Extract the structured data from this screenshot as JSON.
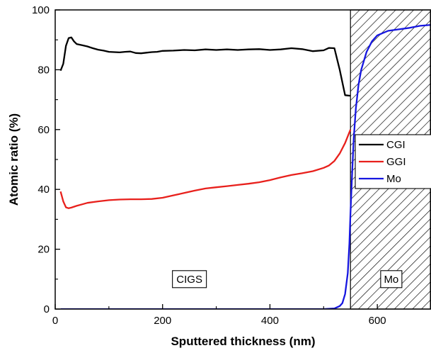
{
  "chart_data": {
    "type": "line",
    "title": "",
    "xlabel": "Sputtered thickness (nm)",
    "ylabel": "Atomic ratio (%)",
    "xlim": [
      0,
      700
    ],
    "ylim": [
      0,
      100
    ],
    "xticks": [
      0,
      200,
      400,
      600
    ],
    "yticks": [
      0,
      20,
      40,
      60,
      80,
      100
    ],
    "grid": false,
    "legend_position": "right",
    "colors": {
      "CGI": "#000000",
      "GGI": "#e8201c",
      "Mo": "#1616e0"
    },
    "series": [
      {
        "name": "CGI",
        "x": [
          10,
          15,
          20,
          25,
          30,
          35,
          40,
          50,
          60,
          70,
          80,
          90,
          100,
          110,
          120,
          130,
          140,
          150,
          160,
          170,
          180,
          190,
          200,
          220,
          240,
          260,
          280,
          300,
          320,
          340,
          360,
          380,
          400,
          420,
          440,
          460,
          480,
          500,
          510,
          520,
          530,
          540,
          550
        ],
        "y": [
          79.7,
          82,
          88,
          90.6,
          90.8,
          89.5,
          88.6,
          88.2,
          87.8,
          87.2,
          86.7,
          86.4,
          86,
          85.9,
          85.8,
          86,
          86.1,
          85.6,
          85.5,
          85.7,
          85.9,
          86,
          86.3,
          86.4,
          86.6,
          86.5,
          86.8,
          86.6,
          86.8,
          86.6,
          86.8,
          86.9,
          86.6,
          86.8,
          87.2,
          86.9,
          86.2,
          86.5,
          87.3,
          87.2,
          80,
          71.5,
          71.3
        ]
      },
      {
        "name": "GGI",
        "x": [
          10,
          15,
          20,
          25,
          30,
          40,
          50,
          60,
          80,
          100,
          120,
          140,
          160,
          180,
          200,
          220,
          240,
          260,
          280,
          300,
          320,
          340,
          360,
          380,
          400,
          420,
          440,
          460,
          480,
          500,
          510,
          520,
          530,
          540,
          550
        ],
        "y": [
          39.3,
          36,
          34,
          33.7,
          33.9,
          34.5,
          35,
          35.5,
          36,
          36.4,
          36.6,
          36.7,
          36.7,
          36.8,
          37.2,
          38,
          38.8,
          39.6,
          40.3,
          40.7,
          41.1,
          41.5,
          41.9,
          42.4,
          43.1,
          44,
          44.8,
          45.4,
          46.1,
          47.2,
          48,
          49.5,
          52,
          55.5,
          60
        ]
      },
      {
        "name": "Mo",
        "x": [
          10,
          100,
          200,
          300,
          400,
          500,
          520,
          530,
          535,
          540,
          545,
          548,
          550,
          553,
          556,
          560,
          565,
          570,
          580,
          590,
          600,
          620,
          640,
          660,
          680,
          700
        ],
        "y": [
          0,
          0,
          0,
          0,
          0,
          0,
          0.2,
          1,
          2,
          5,
          12,
          22,
          32,
          45,
          57,
          67,
          75,
          80,
          86,
          89.5,
          91.5,
          93,
          93.5,
          94,
          94.7,
          95
        ]
      }
    ],
    "annotations": [
      {
        "text": "CIGS",
        "x": 250,
        "y": 10
      },
      {
        "text": "Mo",
        "x": 626,
        "y": 10
      }
    ],
    "shaded_region": {
      "x_start": 550,
      "x_end": 700,
      "pattern": "diagonal-hatch"
    }
  }
}
